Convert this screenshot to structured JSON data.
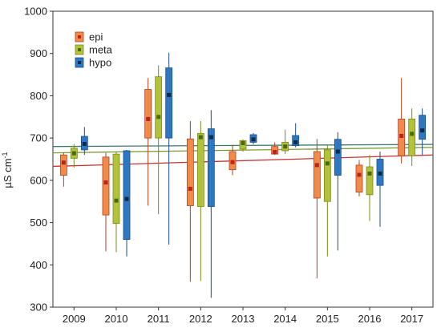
{
  "chart_data": {
    "type": "box",
    "ylabel_base": "µS cm",
    "ylabel_sup": "-1",
    "ylim": [
      300,
      1000
    ],
    "yticks": [
      300,
      400,
      500,
      600,
      700,
      800,
      900,
      1000
    ],
    "categories": [
      "2009",
      "2010",
      "2011",
      "2012",
      "2013",
      "2014",
      "2015",
      "2016",
      "2017"
    ],
    "grid": false,
    "legend_position": "top-left",
    "series": [
      {
        "name": "epi",
        "color": "#F28B4A",
        "edge": "#B24020",
        "marker": "#C0201E",
        "boxes": [
          {
            "min": 585,
            "q1": 612,
            "median": 642,
            "q3": 660,
            "max": 666
          },
          {
            "min": 432,
            "q1": 518,
            "median": 595,
            "q3": 655,
            "max": 665
          },
          {
            "min": 540,
            "q1": 700,
            "median": 745,
            "q3": 815,
            "max": 842
          },
          {
            "min": 360,
            "q1": 540,
            "median": 580,
            "q3": 698,
            "max": 740
          },
          {
            "min": 612,
            "q1": 625,
            "median": 643,
            "q3": 668,
            "max": 684
          },
          {
            "min": 660,
            "q1": 662,
            "median": 667,
            "q3": 680,
            "max": 690
          },
          {
            "min": 368,
            "q1": 558,
            "median": 636,
            "q3": 668,
            "max": 698
          },
          {
            "min": 562,
            "q1": 572,
            "median": 613,
            "q3": 636,
            "max": 648
          },
          {
            "min": 640,
            "q1": 658,
            "median": 705,
            "q3": 745,
            "max": 842
          }
        ]
      },
      {
        "name": "meta",
        "color": "#B2C23A",
        "edge": "#7A8A16",
        "marker": "#4A6A12",
        "boxes": [
          {
            "min": 630,
            "q1": 652,
            "median": 664,
            "q3": 676,
            "max": 686
          },
          {
            "min": 430,
            "q1": 498,
            "median": 552,
            "q3": 662,
            "max": 668
          },
          {
            "min": 520,
            "q1": 700,
            "median": 750,
            "q3": 845,
            "max": 872
          },
          {
            "min": 362,
            "q1": 538,
            "median": 702,
            "q3": 711,
            "max": 740
          },
          {
            "min": 668,
            "q1": 674,
            "median": 688,
            "q3": 694,
            "max": 697
          },
          {
            "min": 662,
            "q1": 670,
            "median": 680,
            "q3": 690,
            "max": 720
          },
          {
            "min": 420,
            "q1": 550,
            "median": 640,
            "q3": 672,
            "max": 684
          },
          {
            "min": 504,
            "q1": 566,
            "median": 616,
            "q3": 632,
            "max": 660
          },
          {
            "min": 634,
            "q1": 658,
            "median": 710,
            "q3": 745,
            "max": 770
          }
        ]
      },
      {
        "name": "hypo",
        "color": "#2E78C2",
        "edge": "#1A4E8A",
        "marker": "#0A2A4A",
        "boxes": [
          {
            "min": 660,
            "q1": 672,
            "median": 686,
            "q3": 704,
            "max": 726
          },
          {
            "min": 420,
            "q1": 460,
            "median": 556,
            "q3": 670,
            "max": 672
          },
          {
            "min": 448,
            "q1": 700,
            "median": 802,
            "q3": 866,
            "max": 902
          },
          {
            "min": 322,
            "q1": 538,
            "median": 702,
            "q3": 722,
            "max": 766
          },
          {
            "min": 685,
            "q1": 690,
            "median": 697,
            "q3": 708,
            "max": 712
          },
          {
            "min": 678,
            "q1": 682,
            "median": 690,
            "q3": 706,
            "max": 735
          },
          {
            "min": 434,
            "q1": 612,
            "median": 668,
            "q3": 697,
            "max": 714
          },
          {
            "min": 490,
            "q1": 588,
            "median": 616,
            "q3": 650,
            "max": 668
          },
          {
            "min": 660,
            "q1": 697,
            "median": 718,
            "q3": 754,
            "max": 770
          }
        ]
      }
    ],
    "trend_lines": [
      {
        "series": "epi",
        "color": "#C83232",
        "y_start": 633,
        "y_end": 660
      },
      {
        "series": "meta",
        "color": "#7E9A3A",
        "y_start": 665,
        "y_end": 678
      },
      {
        "series": "hypo",
        "color": "#3D7A6E",
        "y_start": 680,
        "y_end": 685
      }
    ]
  }
}
